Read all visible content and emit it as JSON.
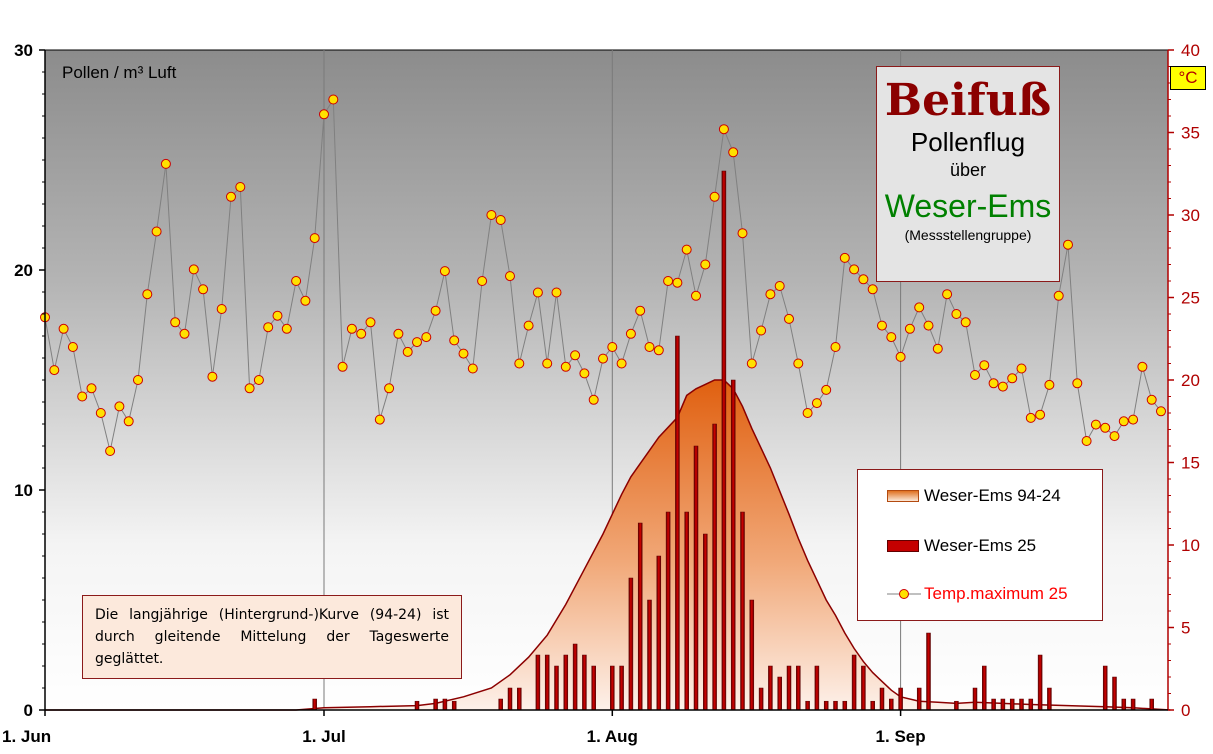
{
  "chart_data": {
    "type": "bar",
    "title": "Beifuß",
    "subtitle": "Pollenflug",
    "subtitle2": "über",
    "region": "Weser-Ems",
    "region_note": "(Messstellengruppe)",
    "ylabel": "Pollen / m³ Luft",
    "y2label": "°C",
    "ylim": [
      0,
      30
    ],
    "y2lim": [
      0,
      40
    ],
    "y_ticks": [
      "0",
      "10",
      "20",
      "30"
    ],
    "y2_ticks": [
      "0",
      "5",
      "10",
      "15",
      "20",
      "25",
      "30",
      "35",
      "40"
    ],
    "x_ticks": [
      {
        "label": "1. Jun",
        "day": 0
      },
      {
        "label": "1. Jul",
        "day": 30
      },
      {
        "label": "1. Aug",
        "day": 61
      },
      {
        "label": "1. Sep",
        "day": 92
      }
    ],
    "grid": "vertical at month starts",
    "legend_position": "lower-right",
    "note": "Die langjährige (Hintergrund-)Kurve (94-24) ist durch gleitende Mittelung der Tageswerte geglättet.",
    "series": [
      {
        "name": "Weser-Ems 94-24",
        "kind": "area",
        "axis": "left",
        "points": [
          [
            0,
            0
          ],
          [
            27,
            0
          ],
          [
            30,
            0.1
          ],
          [
            35,
            0.15
          ],
          [
            40,
            0.2
          ],
          [
            42,
            0.3
          ],
          [
            45,
            0.6
          ],
          [
            48,
            1.0
          ],
          [
            50,
            1.6
          ],
          [
            52,
            2.4
          ],
          [
            54,
            3.4
          ],
          [
            56,
            4.8
          ],
          [
            58,
            6.4
          ],
          [
            60,
            8.0
          ],
          [
            62,
            9.8
          ],
          [
            63,
            10.6
          ],
          [
            65,
            11.8
          ],
          [
            66,
            12.4
          ],
          [
            68,
            13.3
          ],
          [
            69,
            14.3
          ],
          [
            70,
            14.6
          ],
          [
            71,
            14.8
          ],
          [
            72,
            15.0
          ],
          [
            73,
            15.0
          ],
          [
            74,
            14.6
          ],
          [
            75,
            13.8
          ],
          [
            76,
            12.8
          ],
          [
            78,
            11.0
          ],
          [
            80,
            8.9
          ],
          [
            81,
            7.8
          ],
          [
            82,
            6.8
          ],
          [
            83,
            5.9
          ],
          [
            84,
            5.0
          ],
          [
            85,
            4.3
          ],
          [
            86,
            3.5
          ],
          [
            87,
            2.8
          ],
          [
            88,
            2.2
          ],
          [
            89,
            1.7
          ],
          [
            90,
            1.3
          ],
          [
            91,
            0.9
          ],
          [
            92,
            0.6
          ],
          [
            94,
            0.4
          ],
          [
            96,
            0.35
          ],
          [
            98,
            0.3
          ],
          [
            100,
            0.35
          ],
          [
            103,
            0.3
          ],
          [
            106,
            0.25
          ],
          [
            110,
            0.2
          ],
          [
            114,
            0.15
          ],
          [
            117,
            0.1
          ],
          [
            119,
            0.05
          ],
          [
            121,
            0
          ]
        ]
      },
      {
        "name": "Weser-Ems 25",
        "kind": "bar",
        "axis": "left",
        "points": [
          [
            29,
            0.5
          ],
          [
            40,
            0.4
          ],
          [
            42,
            0.5
          ],
          [
            43,
            0.5
          ],
          [
            44,
            0.4
          ],
          [
            49,
            0.5
          ],
          [
            50,
            1.0
          ],
          [
            51,
            1.0
          ],
          [
            53,
            2.5
          ],
          [
            54,
            2.5
          ],
          [
            55,
            2.0
          ],
          [
            56,
            2.5
          ],
          [
            57,
            3.0
          ],
          [
            58,
            2.5
          ],
          [
            59,
            2.0
          ],
          [
            61,
            2.0
          ],
          [
            62,
            2.0
          ],
          [
            63,
            6.0
          ],
          [
            64,
            8.5
          ],
          [
            65,
            5.0
          ],
          [
            66,
            7.0
          ],
          [
            67,
            9.0
          ],
          [
            68,
            17.0
          ],
          [
            69,
            9.0
          ],
          [
            70,
            12.0
          ],
          [
            71,
            8.0
          ],
          [
            72,
            13.0
          ],
          [
            73,
            24.5
          ],
          [
            74,
            15.0
          ],
          [
            75,
            9.0
          ],
          [
            76,
            5.0
          ],
          [
            77,
            1.0
          ],
          [
            78,
            2.0
          ],
          [
            79,
            1.5
          ],
          [
            80,
            2.0
          ],
          [
            81,
            2.0
          ],
          [
            82,
            0.4
          ],
          [
            83,
            2.0
          ],
          [
            84,
            0.4
          ],
          [
            85,
            0.4
          ],
          [
            86,
            0.4
          ],
          [
            87,
            2.5
          ],
          [
            88,
            2.0
          ],
          [
            89,
            0.4
          ],
          [
            90,
            1.0
          ],
          [
            91,
            0.5
          ],
          [
            92,
            1.0
          ],
          [
            94,
            1.0
          ],
          [
            95,
            3.5
          ],
          [
            98,
            0.4
          ],
          [
            100,
            1.0
          ],
          [
            101,
            2.0
          ],
          [
            102,
            0.5
          ],
          [
            103,
            0.5
          ],
          [
            104,
            0.5
          ],
          [
            105,
            0.5
          ],
          [
            106,
            0.5
          ],
          [
            107,
            2.5
          ],
          [
            108,
            1.0
          ],
          [
            114,
            2.0
          ],
          [
            115,
            1.5
          ],
          [
            116,
            0.5
          ],
          [
            117,
            0.5
          ],
          [
            119,
            0.5
          ]
        ]
      },
      {
        "name": "Temp.maximum 25",
        "kind": "line",
        "axis": "right",
        "points": [
          [
            0,
            23.8
          ],
          [
            1,
            20.6
          ],
          [
            2,
            23.1
          ],
          [
            3,
            22.0
          ],
          [
            4,
            19.0
          ],
          [
            5,
            19.5
          ],
          [
            6,
            18.0
          ],
          [
            7,
            15.7
          ],
          [
            8,
            18.4
          ],
          [
            9,
            17.5
          ],
          [
            10,
            20.0
          ],
          [
            11,
            25.2
          ],
          [
            12,
            29.0
          ],
          [
            13,
            33.1
          ],
          [
            14,
            23.5
          ],
          [
            15,
            22.8
          ],
          [
            16,
            26.7
          ],
          [
            17,
            25.5
          ],
          [
            18,
            20.2
          ],
          [
            19,
            24.3
          ],
          [
            20,
            31.1
          ],
          [
            21,
            31.7
          ],
          [
            22,
            19.5
          ],
          [
            23,
            20.0
          ],
          [
            24,
            23.2
          ],
          [
            25,
            23.9
          ],
          [
            26,
            23.1
          ],
          [
            27,
            26.0
          ],
          [
            28,
            24.8
          ],
          [
            29,
            28.6
          ],
          [
            30,
            36.1
          ],
          [
            31,
            37.0
          ],
          [
            32,
            20.8
          ],
          [
            33,
            23.1
          ],
          [
            34,
            22.8
          ],
          [
            35,
            23.5
          ],
          [
            36,
            17.6
          ],
          [
            37,
            19.5
          ],
          [
            38,
            22.8
          ],
          [
            39,
            21.7
          ],
          [
            40,
            22.3
          ],
          [
            41,
            22.6
          ],
          [
            42,
            24.2
          ],
          [
            43,
            26.6
          ],
          [
            44,
            22.4
          ],
          [
            45,
            21.6
          ],
          [
            46,
            20.7
          ],
          [
            47,
            26.0
          ],
          [
            48,
            30.0
          ],
          [
            49,
            29.7
          ],
          [
            50,
            26.3
          ],
          [
            51,
            21.0
          ],
          [
            52,
            23.3
          ],
          [
            53,
            25.3
          ],
          [
            54,
            21.0
          ],
          [
            55,
            25.3
          ],
          [
            56,
            20.8
          ],
          [
            57,
            21.5
          ],
          [
            58,
            20.4
          ],
          [
            59,
            18.8
          ],
          [
            60,
            21.3
          ],
          [
            61,
            22.0
          ],
          [
            62,
            21.0
          ],
          [
            63,
            22.8
          ],
          [
            64,
            24.2
          ],
          [
            65,
            22.0
          ],
          [
            66,
            21.8
          ],
          [
            67,
            26.0
          ],
          [
            68,
            25.9
          ],
          [
            69,
            27.9
          ],
          [
            70,
            25.1
          ],
          [
            71,
            27.0
          ],
          [
            72,
            31.1
          ],
          [
            73,
            35.2
          ],
          [
            74,
            33.8
          ],
          [
            75,
            28.9
          ],
          [
            76,
            21.0
          ],
          [
            77,
            23.0
          ],
          [
            78,
            25.2
          ],
          [
            79,
            25.7
          ],
          [
            80,
            23.7
          ],
          [
            81,
            21.0
          ],
          [
            82,
            18.0
          ],
          [
            83,
            18.6
          ],
          [
            84,
            19.4
          ],
          [
            85,
            22.0
          ],
          [
            86,
            27.4
          ],
          [
            87,
            26.7
          ],
          [
            88,
            26.1
          ],
          [
            89,
            25.5
          ],
          [
            90,
            23.3
          ],
          [
            91,
            22.6
          ],
          [
            92,
            21.4
          ],
          [
            93,
            23.1
          ],
          [
            94,
            24.4
          ],
          [
            95,
            23.3
          ],
          [
            96,
            21.9
          ],
          [
            97,
            25.2
          ],
          [
            98,
            24.0
          ],
          [
            99,
            23.5
          ],
          [
            100,
            20.3
          ],
          [
            101,
            20.9
          ],
          [
            102,
            19.8
          ],
          [
            103,
            19.6
          ],
          [
            104,
            20.1
          ],
          [
            105,
            20.7
          ],
          [
            106,
            17.7
          ],
          [
            107,
            17.9
          ],
          [
            108,
            19.7
          ],
          [
            109,
            25.1
          ],
          [
            110,
            28.2
          ],
          [
            111,
            19.8
          ],
          [
            112,
            16.3
          ],
          [
            113,
            17.3
          ],
          [
            114,
            17.1
          ],
          [
            115,
            16.6
          ],
          [
            116,
            17.5
          ],
          [
            117,
            17.6
          ],
          [
            118,
            20.8
          ],
          [
            119,
            18.8
          ],
          [
            120,
            18.1
          ]
        ]
      }
    ]
  },
  "legend": {
    "area": "Weser-Ems 94-24",
    "bar": "Weser-Ems 25",
    "line": "Temp.maximum 25"
  },
  "colors": {
    "area_top": "#e06010",
    "area_bottom": "#fbe8d8",
    "area_line": "#8b0000",
    "bar_fill": "#c40000",
    "bar_dark": "#5a0000",
    "marker_fill": "#ffe000",
    "marker_edge": "#cc0000",
    "temp_line": "#808080",
    "right_axis": "#b00000",
    "region": "#008000",
    "title": "#8b0000"
  }
}
